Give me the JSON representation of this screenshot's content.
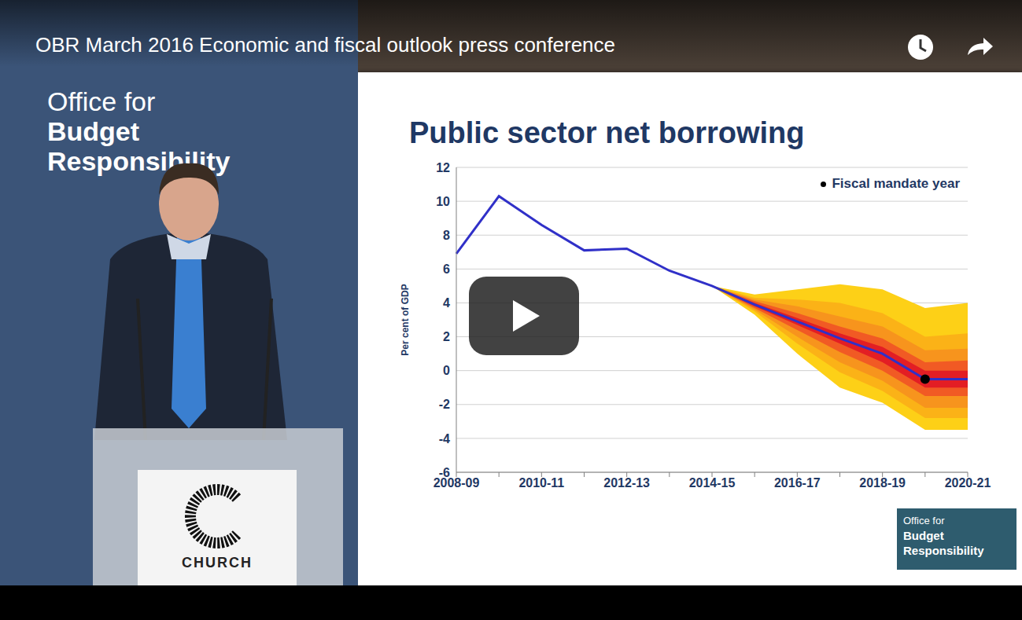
{
  "video_title": "OBR March 2016 Economic and fiscal outlook press conference",
  "banner": {
    "lines": [
      "Office for",
      "Budget",
      "Responsibility"
    ]
  },
  "podium": {
    "text": "CHURCH"
  },
  "logo": {
    "lines": [
      "Office for",
      "Budget",
      "Responsibility"
    ]
  },
  "chart_data": {
    "type": "line",
    "title": "Public sector net borrowing",
    "y_label": "Per cent of GDP",
    "categories": [
      "2008-09",
      null,
      "2010-11",
      null,
      "2012-13",
      null,
      "2014-15",
      null,
      "2016-17",
      null,
      "2018-19",
      null,
      "2020-21"
    ],
    "values": [
      6.9,
      10.3,
      8.6,
      7.1,
      7.2,
      5.9,
      5.0,
      3.9,
      2.9,
      1.9,
      1.0,
      -0.5,
      -0.5
    ],
    "color": "#3030c8",
    "bands": [
      {
        "color": "#fdd017",
        "lower": [
          null,
          null,
          null,
          null,
          null,
          null,
          5.0,
          3.3,
          1.0,
          -1.0,
          -1.9,
          -3.5,
          -3.5
        ],
        "upper": [
          null,
          null,
          null,
          null,
          null,
          null,
          5.0,
          4.5,
          4.8,
          5.1,
          4.8,
          3.7,
          4.0
        ]
      },
      {
        "color": "#fbb217",
        "lower": [
          null,
          null,
          null,
          null,
          null,
          null,
          5.0,
          3.5,
          1.6,
          -0.1,
          -1.2,
          -2.8,
          -2.8
        ],
        "upper": [
          null,
          null,
          null,
          null,
          null,
          null,
          5.0,
          4.3,
          4.2,
          4.0,
          3.4,
          2.0,
          2.2
        ]
      },
      {
        "color": "#f7941d",
        "lower": [
          null,
          null,
          null,
          null,
          null,
          null,
          5.0,
          3.6,
          2.0,
          0.5,
          -0.6,
          -2.2,
          -2.2
        ],
        "upper": [
          null,
          null,
          null,
          null,
          null,
          null,
          5.0,
          4.2,
          3.8,
          3.2,
          2.6,
          1.2,
          1.3
        ]
      },
      {
        "color": "#f15a24",
        "lower": [
          null,
          null,
          null,
          null,
          null,
          null,
          5.0,
          3.7,
          2.4,
          1.1,
          0.0,
          -1.5,
          -1.5
        ],
        "upper": [
          null,
          null,
          null,
          null,
          null,
          null,
          5.0,
          4.1,
          3.4,
          2.6,
          1.9,
          0.5,
          0.6
        ]
      },
      {
        "color": "#e31e24",
        "lower": [
          null,
          null,
          null,
          null,
          null,
          null,
          5.0,
          3.8,
          2.7,
          1.6,
          0.5,
          -1.0,
          -1.0
        ],
        "upper": [
          null,
          null,
          null,
          null,
          null,
          null,
          5.0,
          4.0,
          3.1,
          2.2,
          1.4,
          0.0,
          0.0
        ]
      }
    ],
    "annotations": [
      {
        "text": "Fiscal mandate year",
        "index": 11,
        "value": -0.5,
        "color": "#000000"
      }
    ],
    "ylim": [
      -6,
      12
    ],
    "yticks": [
      -6,
      -4,
      -2,
      0,
      2,
      4,
      6,
      8,
      10,
      12
    ],
    "grid": true
  }
}
